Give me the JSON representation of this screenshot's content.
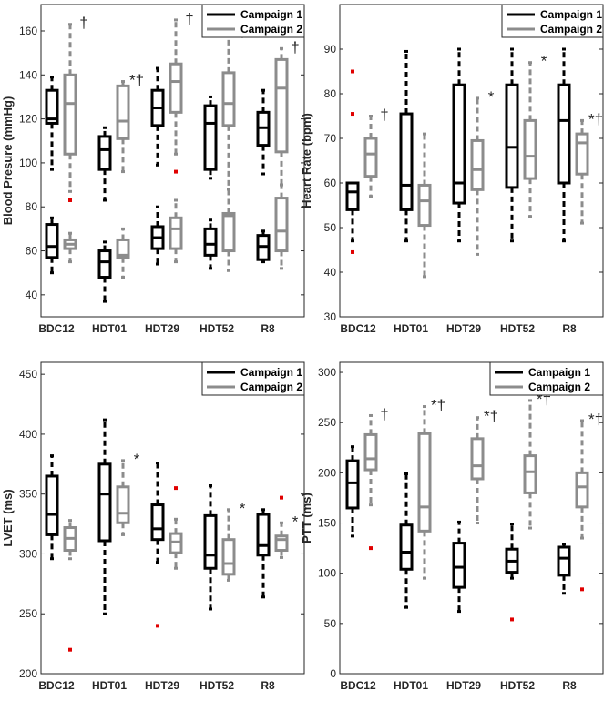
{
  "legend": {
    "campaign1": "Campaign 1",
    "campaign2": "Campaign 2"
  },
  "colors": {
    "campaign1": "#000000",
    "campaign2": "#8c8c8c",
    "outlier": "#e00000"
  },
  "chart_data": [
    {
      "id": "bp",
      "type": "box",
      "ylabel": "Blood Presure (mmHg)",
      "categories": [
        "BDC12",
        "HDT01",
        "HDT29",
        "HDT52",
        "R8"
      ],
      "ylim": [
        30,
        172
      ],
      "yticks": [
        40,
        60,
        80,
        100,
        120,
        140,
        160
      ],
      "legend": "top-right",
      "series": [
        {
          "name": "Campaign 1",
          "boxes": [
            {
              "category": "BDC12",
              "group": "systolic",
              "whisker_low": 97,
              "q1": 118,
              "median": 120,
              "q3": 133,
              "whisker_high": 139,
              "outliers": [],
              "marker": ""
            },
            {
              "category": "HDT01",
              "group": "systolic",
              "whisker_low": 83,
              "q1": 97,
              "median": 106,
              "q3": 112,
              "whisker_high": 116,
              "outliers": [],
              "marker": ""
            },
            {
              "category": "HDT29",
              "group": "systolic",
              "whisker_low": 99,
              "q1": 117,
              "median": 125,
              "q3": 133,
              "whisker_high": 143,
              "outliers": [],
              "marker": ""
            },
            {
              "category": "HDT52",
              "group": "systolic",
              "whisker_low": 93,
              "q1": 97,
              "median": 118,
              "q3": 126,
              "whisker_high": 130,
              "outliers": [],
              "marker": ""
            },
            {
              "category": "R8",
              "group": "systolic",
              "whisker_low": 95,
              "q1": 108,
              "median": 116,
              "q3": 123,
              "whisker_high": 133,
              "outliers": [],
              "marker": ""
            },
            {
              "category": "BDC12",
              "group": "diastolic",
              "whisker_low": 50,
              "q1": 57,
              "median": 62,
              "q3": 72,
              "whisker_high": 75,
              "outliers": [],
              "marker": ""
            },
            {
              "category": "HDT01",
              "group": "diastolic",
              "whisker_low": 37,
              "q1": 48,
              "median": 55,
              "q3": 60,
              "whisker_high": 64,
              "outliers": [],
              "marker": ""
            },
            {
              "category": "HDT29",
              "group": "diastolic",
              "whisker_low": 54,
              "q1": 61,
              "median": 66,
              "q3": 71,
              "whisker_high": 80,
              "outliers": [],
              "marker": ""
            },
            {
              "category": "HDT52",
              "group": "diastolic",
              "whisker_low": 52,
              "q1": 58,
              "median": 63,
              "q3": 70,
              "whisker_high": 74,
              "outliers": [],
              "marker": ""
            },
            {
              "category": "R8",
              "group": "diastolic",
              "whisker_low": 55,
              "q1": 56,
              "median": 62,
              "q3": 67,
              "whisker_high": 69,
              "outliers": [],
              "marker": ""
            }
          ]
        },
        {
          "name": "Campaign 2",
          "boxes": [
            {
              "category": "BDC12",
              "group": "systolic",
              "whisker_low": 87,
              "q1": 104,
              "median": 127,
              "q3": 140,
              "whisker_high": 163,
              "outliers": [
                83
              ],
              "marker": "†"
            },
            {
              "category": "HDT01",
              "group": "systolic",
              "whisker_low": 96,
              "q1": 111,
              "median": 119,
              "q3": 135,
              "whisker_high": 137,
              "outliers": [],
              "marker": "*†"
            },
            {
              "category": "HDT29",
              "group": "systolic",
              "whisker_low": 104,
              "q1": 123,
              "median": 137,
              "q3": 145,
              "whisker_high": 165,
              "outliers": [
                96
              ],
              "marker": "†"
            },
            {
              "category": "HDT52",
              "group": "systolic",
              "whisker_low": 88,
              "q1": 117,
              "median": 127,
              "q3": 141,
              "whisker_high": 159,
              "outliers": [],
              "marker": "†"
            },
            {
              "category": "R8",
              "group": "systolic",
              "whisker_low": 90,
              "q1": 105,
              "median": 134,
              "q3": 147,
              "whisker_high": 152,
              "outliers": [],
              "marker": "†"
            },
            {
              "category": "BDC12",
              "group": "diastolic",
              "whisker_low": 55,
              "q1": 61,
              "median": 63,
              "q3": 65,
              "whisker_high": 68,
              "outliers": [],
              "marker": ""
            },
            {
              "category": "HDT01",
              "group": "diastolic",
              "whisker_low": 48,
              "q1": 57,
              "median": 58,
              "q3": 65,
              "whisker_high": 70,
              "outliers": [],
              "marker": ""
            },
            {
              "category": "HDT29",
              "group": "diastolic",
              "whisker_low": 55,
              "q1": 61,
              "median": 70,
              "q3": 75,
              "whisker_high": 83,
              "outliers": [],
              "marker": ""
            },
            {
              "category": "HDT52",
              "group": "diastolic",
              "whisker_low": 51,
              "q1": 60,
              "median": 76,
              "q3": 77,
              "whisker_high": 88,
              "outliers": [],
              "marker": ""
            },
            {
              "category": "R8",
              "group": "diastolic",
              "whisker_low": 52,
              "q1": 60,
              "median": 69,
              "q3": 84,
              "whisker_high": 90,
              "outliers": [],
              "marker": ""
            }
          ]
        }
      ]
    },
    {
      "id": "hr",
      "type": "box",
      "ylabel": "Heart Rate (bpm)",
      "categories": [
        "BDC12",
        "HDT01",
        "HDT29",
        "HDT52",
        "R8"
      ],
      "ylim": [
        30,
        100
      ],
      "yticks": [
        30,
        40,
        50,
        60,
        70,
        80,
        90
      ],
      "legend": "top-right",
      "series": [
        {
          "name": "Campaign 1",
          "boxes": [
            {
              "category": "BDC12",
              "whisker_low": 47,
              "q1": 54,
              "median": 58,
              "q3": 60,
              "whisker_high": 60,
              "outliers": [
                85,
                75.5,
                44.5
              ],
              "marker": ""
            },
            {
              "category": "HDT01",
              "whisker_low": 47,
              "q1": 54,
              "median": 59.5,
              "q3": 75.5,
              "whisker_high": 89.5,
              "outliers": [],
              "marker": ""
            },
            {
              "category": "HDT29",
              "whisker_low": 47,
              "q1": 55.5,
              "median": 60,
              "q3": 82,
              "whisker_high": 90,
              "outliers": [],
              "marker": ""
            },
            {
              "category": "HDT52",
              "whisker_low": 47,
              "q1": 59,
              "median": 68,
              "q3": 82,
              "whisker_high": 90,
              "outliers": [],
              "marker": ""
            },
            {
              "category": "R8",
              "whisker_low": 47,
              "q1": 60,
              "median": 74,
              "q3": 82,
              "whisker_high": 90,
              "outliers": [],
              "marker": ""
            }
          ]
        },
        {
          "name": "Campaign 2",
          "boxes": [
            {
              "category": "BDC12",
              "whisker_low": 57,
              "q1": 61.5,
              "median": 66.5,
              "q3": 70,
              "whisker_high": 75,
              "outliers": [],
              "marker": "†"
            },
            {
              "category": "HDT01",
              "whisker_low": 39,
              "q1": 50.5,
              "median": 56,
              "q3": 59.5,
              "whisker_high": 71,
              "outliers": [],
              "marker": ""
            },
            {
              "category": "HDT29",
              "whisker_low": 44,
              "q1": 58.5,
              "median": 63,
              "q3": 69.5,
              "whisker_high": 79,
              "outliers": [],
              "marker": "*"
            },
            {
              "category": "HDT52",
              "whisker_low": 52.5,
              "q1": 61,
              "median": 66,
              "q3": 74,
              "whisker_high": 87,
              "outliers": [],
              "marker": "*"
            },
            {
              "category": "R8",
              "whisker_low": 51,
              "q1": 62,
              "median": 69,
              "q3": 71,
              "whisker_high": 74,
              "outliers": [],
              "marker": "*†"
            }
          ]
        }
      ]
    },
    {
      "id": "lvet",
      "type": "box",
      "ylabel": "LVET (ms)",
      "categories": [
        "BDC12",
        "HDT01",
        "HDT29",
        "HDT52",
        "R8"
      ],
      "ylim": [
        200,
        460
      ],
      "yticks": [
        200,
        250,
        300,
        350,
        400,
        450
      ],
      "legend": "top-right",
      "series": [
        {
          "name": "Campaign 1",
          "boxes": [
            {
              "category": "BDC12",
              "whisker_low": 296,
              "q1": 316,
              "median": 333,
              "q3": 365,
              "whisker_high": 382,
              "outliers": [],
              "marker": ""
            },
            {
              "category": "HDT01",
              "whisker_low": 250,
              "q1": 311,
              "median": 350,
              "q3": 375,
              "whisker_high": 412,
              "outliers": [],
              "marker": ""
            },
            {
              "category": "HDT29",
              "whisker_low": 293,
              "q1": 312,
              "median": 321,
              "q3": 341,
              "whisker_high": 376,
              "outliers": [
                240
              ],
              "marker": ""
            },
            {
              "category": "HDT52",
              "whisker_low": 254,
              "q1": 288,
              "median": 299,
              "q3": 332,
              "whisker_high": 357,
              "outliers": [],
              "marker": ""
            },
            {
              "category": "R8",
              "whisker_low": 264,
              "q1": 299,
              "median": 307,
              "q3": 333,
              "whisker_high": 337,
              "outliers": [],
              "marker": ""
            }
          ]
        },
        {
          "name": "Campaign 2",
          "boxes": [
            {
              "category": "BDC12",
              "whisker_low": 296,
              "q1": 303,
              "median": 313,
              "q3": 322,
              "whisker_high": 328,
              "outliers": [
                220
              ],
              "marker": ""
            },
            {
              "category": "HDT01",
              "whisker_low": 316,
              "q1": 326,
              "median": 334,
              "q3": 356,
              "whisker_high": 378,
              "outliers": [],
              "marker": "*"
            },
            {
              "category": "HDT29",
              "whisker_low": 288,
              "q1": 301,
              "median": 310,
              "q3": 317,
              "whisker_high": 329,
              "outliers": [
                355
              ],
              "marker": ""
            },
            {
              "category": "HDT52",
              "whisker_low": 278,
              "q1": 283,
              "median": 292,
              "q3": 312,
              "whisker_high": 337,
              "outliers": [],
              "marker": "*"
            },
            {
              "category": "R8",
              "whisker_low": 297,
              "q1": 303,
              "median": 312,
              "q3": 315,
              "whisker_high": 326,
              "outliers": [
                347
              ],
              "marker": "*"
            }
          ]
        }
      ]
    },
    {
      "id": "ptt",
      "type": "box",
      "ylabel": "PTT (ms)",
      "categories": [
        "BDC12",
        "HDT01",
        "HDT29",
        "HDT52",
        "R8"
      ],
      "ylim": [
        0,
        310
      ],
      "yticks": [
        0,
        50,
        100,
        150,
        200,
        250,
        300
      ],
      "legend": "top-right",
      "series": [
        {
          "name": "Campaign 1",
          "boxes": [
            {
              "category": "BDC12",
              "whisker_low": 137,
              "q1": 165,
              "median": 190,
              "q3": 212,
              "whisker_high": 226,
              "outliers": [],
              "marker": ""
            },
            {
              "category": "HDT01",
              "whisker_low": 66,
              "q1": 104,
              "median": 121,
              "q3": 148,
              "whisker_high": 199,
              "outliers": [],
              "marker": ""
            },
            {
              "category": "HDT29",
              "whisker_low": 62,
              "q1": 86,
              "median": 106,
              "q3": 130,
              "whisker_high": 151,
              "outliers": [],
              "marker": ""
            },
            {
              "category": "HDT52",
              "whisker_low": 95,
              "q1": 101,
              "median": 112,
              "q3": 124,
              "whisker_high": 149,
              "outliers": [
                54
              ],
              "marker": ""
            },
            {
              "category": "R8",
              "whisker_low": 80,
              "q1": 98,
              "median": 115,
              "q3": 126,
              "whisker_high": 129,
              "outliers": [],
              "marker": ""
            }
          ]
        },
        {
          "name": "Campaign 2",
          "boxes": [
            {
              "category": "BDC12",
              "whisker_low": 168,
              "q1": 203,
              "median": 214,
              "q3": 238,
              "whisker_high": 257,
              "outliers": [
                125
              ],
              "marker": "†"
            },
            {
              "category": "HDT01",
              "whisker_low": 95,
              "q1": 142,
              "median": 166,
              "q3": 239,
              "whisker_high": 266,
              "outliers": [],
              "marker": "*†"
            },
            {
              "category": "HDT29",
              "whisker_low": 150,
              "q1": 194,
              "median": 207,
              "q3": 234,
              "whisker_high": 255,
              "outliers": [],
              "marker": "*†"
            },
            {
              "category": "HDT52",
              "whisker_low": 145,
              "q1": 180,
              "median": 201,
              "q3": 217,
              "whisker_high": 272,
              "outliers": [],
              "marker": "*†"
            },
            {
              "category": "R8",
              "whisker_low": 135,
              "q1": 166,
              "median": 186,
              "q3": 200,
              "whisker_high": 252,
              "outliers": [
                84
              ],
              "marker": "*†"
            }
          ]
        }
      ]
    }
  ]
}
